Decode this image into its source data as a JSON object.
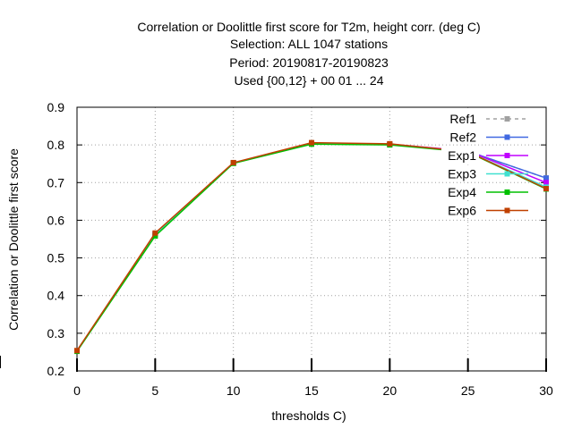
{
  "chart_data": {
    "type": "line",
    "title_lines": [
      "Correlation or Doolittle first score  for T2m, height corr. (deg C)",
      "Selection: ALL    1047 stations",
      "Period: 20190817-20190823",
      "Used {00,12} + 00 01 ... 24"
    ],
    "xlabel": "thresholds C)",
    "ylabel": "Correlation or Doolittle first score",
    "xlim": [
      0,
      30
    ],
    "ylim": [
      0.2,
      0.9
    ],
    "xticks": [
      "0",
      "5",
      "10",
      "15",
      "20",
      "25",
      "30"
    ],
    "yticks": [
      "0.2",
      "0.3",
      "0.4",
      "0.5",
      "0.6",
      "0.7",
      "0.8",
      "0.9"
    ],
    "grid": true,
    "legend_position": "top-right",
    "x": [
      0,
      5,
      10,
      15,
      20,
      25,
      30
    ],
    "series": [
      {
        "name": "Ref1",
        "color": "#a0a0a0",
        "dashed": true,
        "values": [
          0.253,
          0.563,
          0.752,
          0.803,
          0.801,
          0.783,
          0.712
        ]
      },
      {
        "name": "Ref2",
        "color": "#4169e1",
        "dashed": false,
        "values": [
          0.253,
          0.563,
          0.752,
          0.803,
          0.801,
          0.783,
          0.712
        ]
      },
      {
        "name": "Exp1",
        "color": "#c000ff",
        "dashed": false,
        "values": [
          0.253,
          0.563,
          0.752,
          0.804,
          0.802,
          0.784,
          0.7
        ]
      },
      {
        "name": "Exp3",
        "color": "#40e0d0",
        "dashed": false,
        "values": [
          0.253,
          0.562,
          0.752,
          0.803,
          0.801,
          0.782,
          0.688
        ]
      },
      {
        "name": "Exp4",
        "color": "#00c000",
        "dashed": false,
        "values": [
          0.252,
          0.558,
          0.751,
          0.802,
          0.8,
          0.781,
          0.683
        ]
      },
      {
        "name": "Exp6",
        "color": "#c04000",
        "dashed": false,
        "values": [
          0.254,
          0.566,
          0.753,
          0.806,
          0.803,
          0.782,
          0.684
        ]
      }
    ]
  }
}
